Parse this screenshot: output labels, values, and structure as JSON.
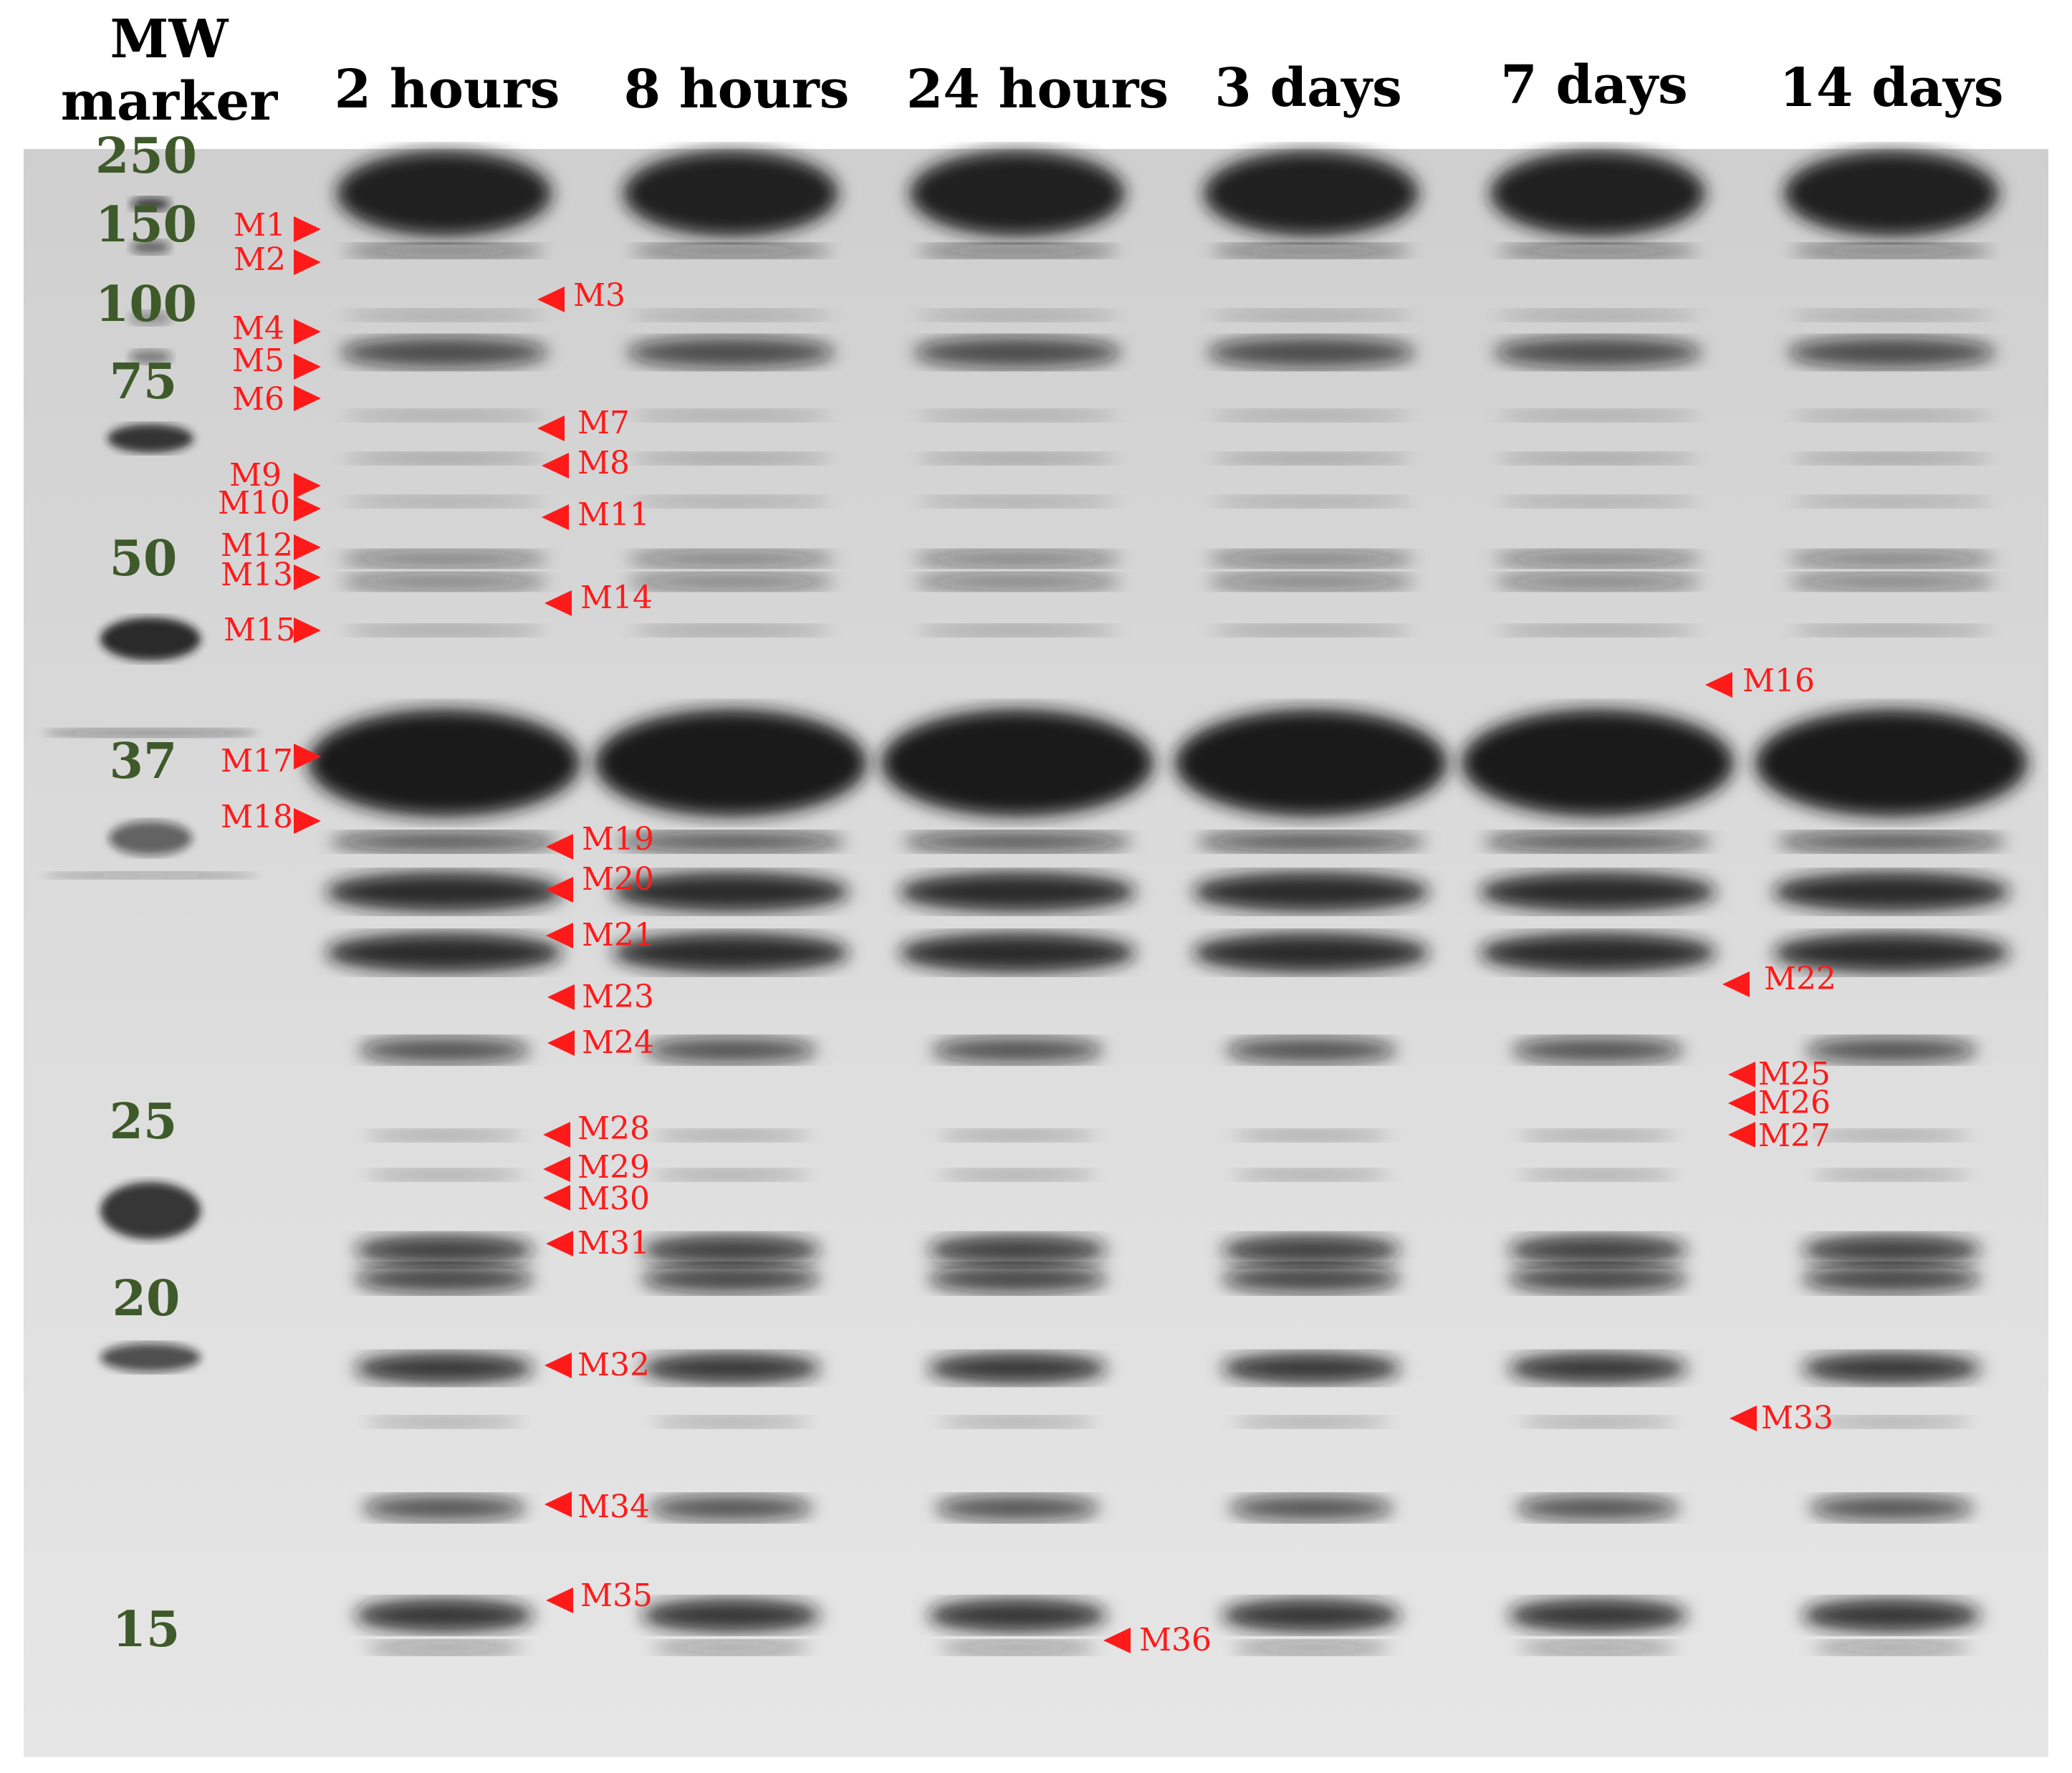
{
  "header": {
    "mw_line1": "MW",
    "mw_line2": "marker",
    "lanes": [
      "2 hours",
      "8 hours",
      "24 hours",
      "3 days",
      "7 days",
      "14 days"
    ]
  },
  "mw_values": [
    "250",
    "150",
    "100",
    "75",
    "50",
    "37",
    "25",
    "20",
    "15"
  ],
  "markers": [
    "M1",
    "M2",
    "M3",
    "M4",
    "M5",
    "M6",
    "M7",
    "M8",
    "M9",
    "M10",
    "M11",
    "M12",
    "M13",
    "M14",
    "M15",
    "M16",
    "M17",
    "M18",
    "M19",
    "M20",
    "M21",
    "M22",
    "M23",
    "M24",
    "M25",
    "M26",
    "M27",
    "M28",
    "M29",
    "M30",
    "M31",
    "M32",
    "M33",
    "M34",
    "M35",
    "M36"
  ],
  "colors": {
    "marker_red": "#ff1a1a",
    "mw_green": "#3f5a2a",
    "gel_bg": "#d6d6d6",
    "band_dark": "#1a1a1a"
  }
}
